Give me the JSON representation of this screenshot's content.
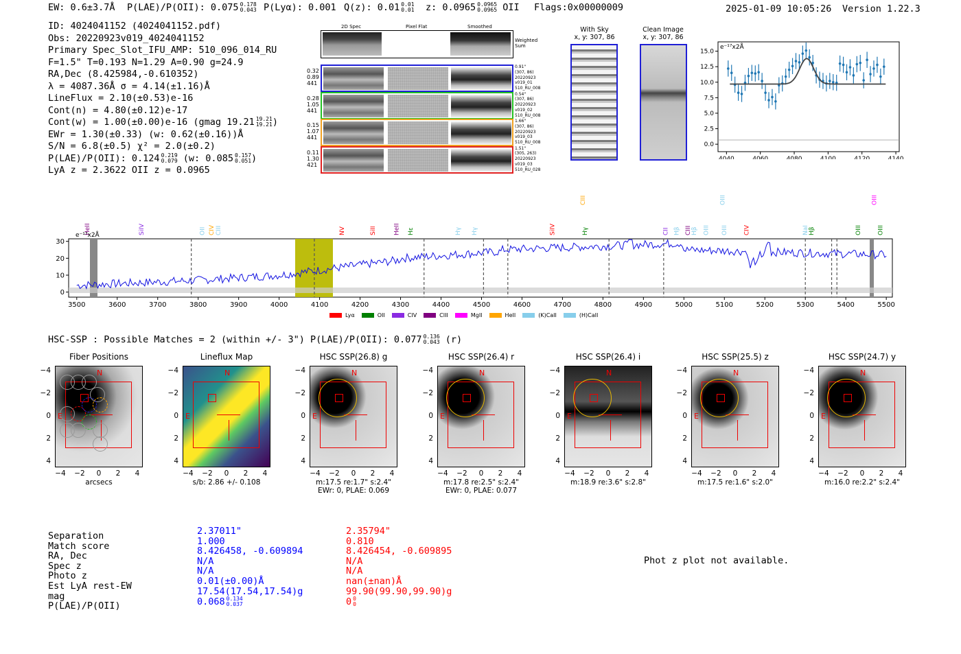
{
  "header": {
    "ew": "EW: 0.6±3.7Å",
    "plae_label": "P(LAE)/P(OII): 0.075",
    "plae_hi": "0.178",
    "plae_lo": "0.043",
    "plya_label": "P(Lyα): 0.001",
    "qz_label": "Q(z): 0.01",
    "qz_hi": "0.01",
    "qz_lo": "0.01",
    "z_label": "z: 0.0965",
    "z_hi": "0.0965",
    "z_lo": "0.0965",
    "z_line": "OII",
    "flags": "Flags:0x00000009",
    "datetime": "2025-01-09 10:05:26",
    "version": "Version 1.22.3"
  },
  "info": {
    "id": "ID: 4024041152 (4024041152.pdf)",
    "obs": "Obs: 20220923v019_4024041152",
    "primary": "Primary Spec_Slot_IFU_AMP: 510_096_014_RU",
    "fline": "F=1.5\"  T=0.193  N=1.29  A=0.90  g=24.9",
    "radec": "RA,Dec (8.425984,-0.610352)",
    "lambda": "λ = 4087.36Å  σ = 4.14(±1.16)Å",
    "lineflux": "LineFlux = 2.10(±0.53)e-16",
    "contn": "Cont(n) = 4.80(±0.12)e-17",
    "contw": "Cont(w) = 1.00(±0.00)e-16 (gmag 19.21",
    "contw_hi": "19.21",
    "contw_lo": "19.21",
    "ewr": "EWr = 1.30(±0.33) (w: 0.62(±0.16))Å",
    "sn": "S/N = 6.8(±0.5)  χ² = 2.0(±0.2)",
    "plae": "P(LAE)/P(OII): 0.124",
    "plae_hi": "0.219",
    "plae_lo": "0.079",
    "plae_w": "(w: 0.085",
    "plae_w_hi": "0.157",
    "plae_w_lo": "0.051",
    "lya_z": "LyA z = 2.3622  OII z = 0.0965"
  },
  "spec2d": {
    "col_titles": [
      "2D Spec",
      "Pixel Flat",
      "Smoothed"
    ],
    "weighted_sum": "Weighted Sum",
    "rows": [
      {
        "left": [
          "0.32",
          "0.89",
          "441"
        ],
        "right": [
          "0.91\"",
          "(307, 86)",
          "20220923",
          "v019_01",
          "510_RU_008"
        ],
        "color": "#1f1fd6"
      },
      {
        "left": [
          "0.28",
          "1.05",
          "441"
        ],
        "right": [
          "0.54\"",
          "(307, 86)",
          "20220923",
          "v019_02",
          "510_RU_008"
        ],
        "color": "#22c022"
      },
      {
        "left": [
          "0.15",
          "1.07",
          "441"
        ],
        "right": [
          "1.66\"",
          "(307, 86)",
          "20220923",
          "v019_03",
          "510_RU_008"
        ],
        "color": "#f0a020"
      },
      {
        "left": [
          "0.11",
          "1.30",
          "421"
        ],
        "right": [
          "1.51\"",
          "(305, 263)",
          "20220923",
          "v019_03",
          "510_RU_028"
        ],
        "color": "#e02020"
      }
    ]
  },
  "sky": {
    "with_sky_title": "With Sky",
    "with_sky_xy": "x, y: 307, 86",
    "clean_title": "Clean Image",
    "clean_xy": "x, y: 307, 86"
  },
  "line_fit": {
    "unit_label": "e⁻¹⁷x2Å",
    "x_ticks": [
      "4040",
      "4060",
      "4080",
      "4100",
      "4120",
      "4140"
    ],
    "y_ticks": [
      "0.0",
      "2.5",
      "5.0",
      "7.5",
      "10.0",
      "12.5",
      "15.0"
    ]
  },
  "spectrum": {
    "unit_label": "e⁻¹⁷x2Å",
    "x_ticks": [
      "3500",
      "3600",
      "3700",
      "3800",
      "3900",
      "4000",
      "4100",
      "4200",
      "4300",
      "4400",
      "4500",
      "4600",
      "4700",
      "4800",
      "4900",
      "5000",
      "5100",
      "5200",
      "5300",
      "5400",
      "5500"
    ],
    "y_ticks": [
      "0",
      "10",
      "20",
      "30"
    ],
    "line_labels": [
      "HeII",
      "SiIV",
      "OII",
      "CIV",
      "CIII",
      "NV",
      "SiII",
      "HeII",
      "Hε",
      "Hγ",
      "Hγ",
      "SiIV",
      "CIII",
      "Hγ",
      "CII",
      "Hβ",
      "CIII",
      "Hβ",
      "OIII",
      "OIII",
      "CIV",
      "NaI",
      "Hβ",
      "OIII",
      "OIII",
      "OIII",
      "OIII"
    ],
    "legend": [
      {
        "label": "Lyα",
        "color": "#ff0000"
      },
      {
        "label": "OII",
        "color": "#008000"
      },
      {
        "label": "CIV",
        "color": "#8a2be2"
      },
      {
        "label": "CIII",
        "color": "#800080"
      },
      {
        "label": "MgII",
        "color": "#ff00ff"
      },
      {
        "label": "HeII",
        "color": "#ffa500"
      },
      {
        "label": "(K)CaII",
        "color": "#87ceeb"
      },
      {
        "label": "(H)CaII",
        "color": "#87ceeb"
      }
    ]
  },
  "hsc_header": {
    "text": "HSC-SSP : Possible Matches = 2 (within +/- 3\")  P(LAE)/P(OII): 0.077",
    "hi": "0.136",
    "lo": "0.043",
    "band": "(r)"
  },
  "cutouts": [
    {
      "title": "Fiber Positions",
      "foot1": "arcsecs",
      "foot2": ""
    },
    {
      "title": "Lineflux Map",
      "foot1": "s/b: 2.86 +/- 0.108",
      "foot2": ""
    },
    {
      "title": "HSC SSP(26.8) g",
      "foot1": "m:17.5  re:1.7\"  s:2.4\"",
      "foot2": "EWr: 0, PLAE: 0.069"
    },
    {
      "title": "HSC SSP(26.4) r",
      "foot1": "m:17.8  re:2.5\"  s:2.4\"",
      "foot2": "EWr: 0, PLAE: 0.077"
    },
    {
      "title": "HSC SSP(26.4) i",
      "foot1": "m:18.9  re:3.6\"  s:2.8\"",
      "foot2": ""
    },
    {
      "title": "HSC SSP(25.5) z",
      "foot1": "m:17.5  re:1.6\"  s:2.0\"",
      "foot2": ""
    },
    {
      "title": "HSC SSP(24.7) y",
      "foot1": "m:16.0  re:2.2\"  s:2.4\"",
      "foot2": ""
    }
  ],
  "cutout_axis": {
    "ticks": [
      "−4",
      "−2",
      "0",
      "2",
      "4"
    ],
    "north": "N",
    "east": "E"
  },
  "match_table": {
    "labels": [
      "Separation",
      "Match score",
      "RA, Dec",
      "Spec z",
      "Photo z",
      "Est LyA rest-EW",
      "mag",
      "P(LAE)/P(OII)"
    ],
    "col1": [
      "2.37011\"",
      "1.000",
      "8.426458, -0.609894",
      "N/A",
      "N/A",
      "0.01(±0.00)Å",
      "17.54(17.54,17.54)g",
      "0.068"
    ],
    "col1_plae_hi": "0.134",
    "col1_plae_lo": "0.037",
    "col2": [
      "2.35794\"",
      "0.810",
      "8.426454, -0.609895",
      "N/A",
      "N/A",
      "nan(±nan)Å",
      "99.90(99.90,99.90)g",
      "0"
    ],
    "col2_plae_hi": "0",
    "col2_plae_lo": "0"
  },
  "photz": {
    "message": "Phot z plot not available."
  }
}
